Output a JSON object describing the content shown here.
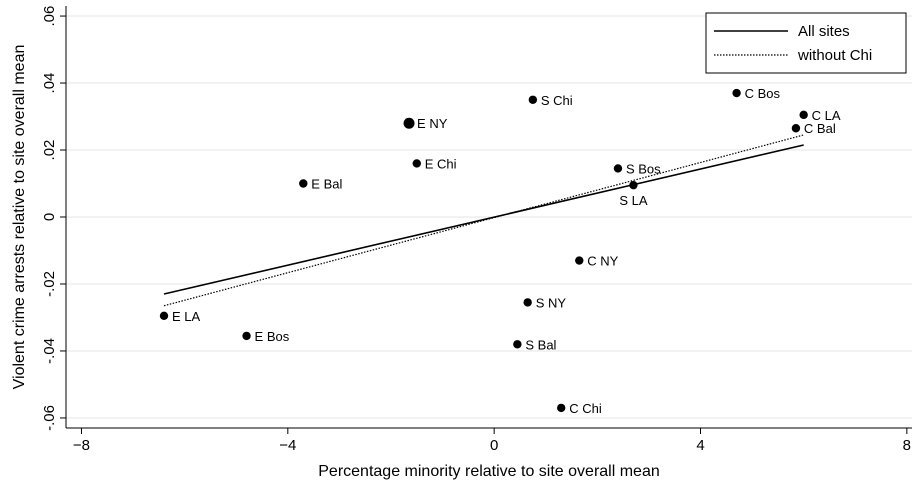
{
  "chart_data": {
    "type": "scatter",
    "xlabel": "Percentage minority relative to site overall mean",
    "ylabel": "Violent crime arrests relative to site overall mean",
    "xlim": [
      -8.3,
      8.1
    ],
    "ylim": [
      -0.063,
      0.063
    ],
    "x_ticks": [
      -8,
      -4,
      0,
      4,
      8
    ],
    "x_tick_labels": [
      "−8",
      "−4",
      "0",
      "4",
      "8"
    ],
    "y_ticks": [
      -0.06,
      -0.04,
      -0.02,
      0,
      0.02,
      0.04,
      0.06
    ],
    "y_tick_labels": [
      "-.06",
      "-.04",
      "-.02",
      "0",
      ".02",
      ".04",
      ".06"
    ],
    "grid": true,
    "points": [
      {
        "label": "E LA",
        "x": -6.4,
        "y": -0.0295,
        "label_side": "right"
      },
      {
        "label": "E Bos",
        "x": -4.8,
        "y": -0.0355,
        "label_side": "right"
      },
      {
        "label": "E Bal",
        "x": -3.7,
        "y": 0.01,
        "label_side": "right"
      },
      {
        "label": "E NY",
        "x": -1.65,
        "y": 0.028,
        "label_side": "right"
      },
      {
        "label": "E Chi",
        "x": -1.5,
        "y": 0.016,
        "label_side": "right"
      },
      {
        "label": "S Chi",
        "x": 0.75,
        "y": 0.035,
        "label_side": "right"
      },
      {
        "label": "S NY",
        "x": 0.65,
        "y": -0.0255,
        "label_side": "right"
      },
      {
        "label": "S Bal",
        "x": 0.45,
        "y": -0.038,
        "label_side": "right"
      },
      {
        "label": "C Chi",
        "x": 1.3,
        "y": -0.057,
        "label_side": "right"
      },
      {
        "label": "C NY",
        "x": 1.65,
        "y": -0.013,
        "label_side": "right"
      },
      {
        "label": "S Bos",
        "x": 2.4,
        "y": 0.0145,
        "label_side": "right"
      },
      {
        "label": "S LA",
        "x": 2.7,
        "y": 0.0095,
        "label_side": "below"
      },
      {
        "label": "C Bos",
        "x": 4.7,
        "y": 0.037,
        "label_side": "right"
      },
      {
        "label": "C LA",
        "x": 6.0,
        "y": 0.0305,
        "label_side": "right"
      },
      {
        "label": "C Bal",
        "x": 5.85,
        "y": 0.0265,
        "label_side": "right"
      }
    ],
    "series": [
      {
        "name": "All sites",
        "style": "solid",
        "x": [
          -6.4,
          6.0
        ],
        "y": [
          -0.023,
          0.0215
        ]
      },
      {
        "name": "without Chi",
        "style": "dotted",
        "x": [
          -6.4,
          6.0
        ],
        "y": [
          -0.0265,
          0.0245
        ]
      }
    ],
    "legend_position": "top-right"
  }
}
